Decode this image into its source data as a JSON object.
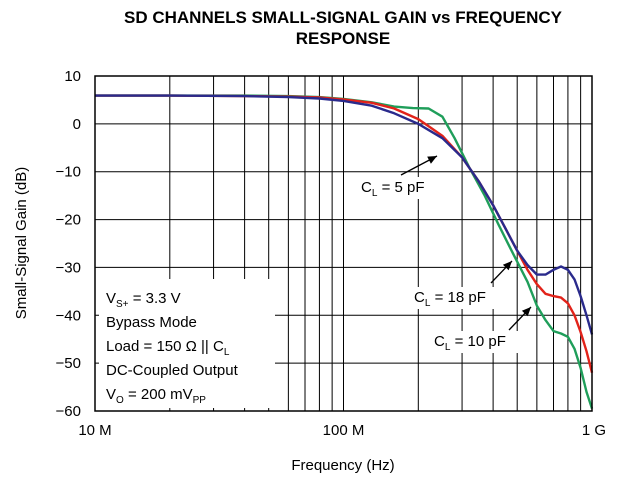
{
  "chart_data": {
    "type": "line",
    "title_line1": "SD CHANNELS SMALL-SIGNAL GAIN vs FREQUENCY",
    "title_line2": "RESPONSE",
    "xlabel": "Frequency (Hz)",
    "ylabel": "Small-Signal Gain (dB)",
    "x_scale": "log",
    "xlim": [
      10000000,
      1000000000
    ],
    "ylim": [
      -60,
      10
    ],
    "x_ticks": [
      {
        "value": 10000000,
        "label": "10 M"
      },
      {
        "value": 100000000,
        "label": "100 M"
      },
      {
        "value": 1000000000,
        "label": "1 G"
      }
    ],
    "y_ticks": [
      {
        "value": 10,
        "label": "10"
      },
      {
        "value": 0,
        "label": "0"
      },
      {
        "value": -10,
        "label": "−10"
      },
      {
        "value": -20,
        "label": "−20"
      },
      {
        "value": -30,
        "label": "−30"
      },
      {
        "value": -40,
        "label": "−40"
      },
      {
        "value": -50,
        "label": "−50"
      },
      {
        "value": -60,
        "label": "−60"
      }
    ],
    "grid": true,
    "series": [
      {
        "id": "cl5",
        "color": "#2a2a8c",
        "label": {
          "main": "C",
          "sub": "L",
          "rest": " = 5 pF"
        },
        "points": [
          [
            10000000,
            5.9
          ],
          [
            20000000,
            5.9
          ],
          [
            40000000,
            5.8
          ],
          [
            60000000,
            5.6
          ],
          [
            80000000,
            5.3
          ],
          [
            100000000,
            4.8
          ],
          [
            130000000,
            3.8
          ],
          [
            160000000,
            2.2
          ],
          [
            200000000,
            0
          ],
          [
            250000000,
            -3
          ],
          [
            300000000,
            -7
          ],
          [
            350000000,
            -12
          ],
          [
            400000000,
            -17
          ],
          [
            450000000,
            -22
          ],
          [
            500000000,
            -26.5
          ],
          [
            550000000,
            -29.5
          ],
          [
            600000000,
            -31.5
          ],
          [
            650000000,
            -31.5
          ],
          [
            700000000,
            -30.5
          ],
          [
            750000000,
            -29.8
          ],
          [
            800000000,
            -30.5
          ],
          [
            850000000,
            -32.5
          ],
          [
            900000000,
            -36
          ],
          [
            950000000,
            -40
          ],
          [
            1000000000,
            -44
          ]
        ]
      },
      {
        "id": "cl18",
        "color": "#e2231a",
        "label": {
          "main": "C",
          "sub": "L",
          "rest": " = 18 pF"
        },
        "points": [
          [
            10000000,
            5.9
          ],
          [
            20000000,
            5.9
          ],
          [
            40000000,
            5.8
          ],
          [
            60000000,
            5.7
          ],
          [
            80000000,
            5.5
          ],
          [
            100000000,
            5.1
          ],
          [
            130000000,
            4.4
          ],
          [
            160000000,
            3.2
          ],
          [
            200000000,
            1
          ],
          [
            250000000,
            -2.5
          ],
          [
            300000000,
            -7
          ],
          [
            350000000,
            -12
          ],
          [
            400000000,
            -17
          ],
          [
            450000000,
            -22
          ],
          [
            500000000,
            -26.5
          ],
          [
            550000000,
            -30.5
          ],
          [
            600000000,
            -33.5
          ],
          [
            650000000,
            -35.5
          ],
          [
            700000000,
            -36
          ],
          [
            750000000,
            -36.3
          ],
          [
            800000000,
            -37.5
          ],
          [
            850000000,
            -40
          ],
          [
            900000000,
            -43.5
          ],
          [
            950000000,
            -47.5
          ],
          [
            1000000000,
            -52
          ]
        ]
      },
      {
        "id": "cl10",
        "color": "#1f9e5a",
        "label": {
          "main": "C",
          "sub": "L",
          "rest": " = 10 pF"
        },
        "points": [
          [
            10000000,
            5.9
          ],
          [
            20000000,
            5.9
          ],
          [
            40000000,
            5.9
          ],
          [
            60000000,
            5.8
          ],
          [
            80000000,
            5.6
          ],
          [
            100000000,
            5.2
          ],
          [
            130000000,
            4.5
          ],
          [
            160000000,
            3.6
          ],
          [
            190000000,
            3.3
          ],
          [
            220000000,
            3.2
          ],
          [
            250000000,
            1.5
          ],
          [
            280000000,
            -3
          ],
          [
            320000000,
            -9
          ],
          [
            370000000,
            -15
          ],
          [
            420000000,
            -21
          ],
          [
            480000000,
            -27
          ],
          [
            550000000,
            -33
          ],
          [
            600000000,
            -38
          ],
          [
            650000000,
            -41
          ],
          [
            700000000,
            -43.3
          ],
          [
            750000000,
            -43.8
          ],
          [
            800000000,
            -44.5
          ],
          [
            850000000,
            -47
          ],
          [
            900000000,
            -51
          ],
          [
            950000000,
            -56
          ],
          [
            1000000000,
            -59.5
          ]
        ]
      }
    ],
    "annotations": {
      "conditions": [
        {
          "main": "V",
          "sub": "S+",
          "rest": " = 3.3 V"
        },
        {
          "main": "Bypass Mode",
          "sub": "",
          "rest": ""
        },
        {
          "main": "Load = 150 Ω || C",
          "sub": "L",
          "rest": ""
        },
        {
          "main": "DC-Coupled Output",
          "sub": "",
          "rest": ""
        },
        {
          "main": "V",
          "sub": "O",
          "rest": " = 200 mV",
          "sub2": "PP"
        }
      ]
    }
  }
}
